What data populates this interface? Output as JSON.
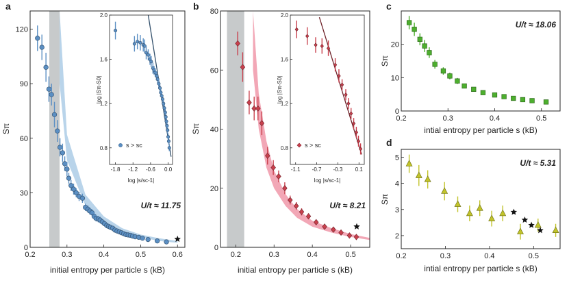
{
  "chart_data": [
    {
      "panel": "a",
      "type": "scatter",
      "xlabel": "initial entropy per particle s (kB)",
      "ylabel": "Sπ",
      "xlim": [
        0.2,
        0.62
      ],
      "ylim": [
        0,
        130
      ],
      "xticks": [
        0.2,
        0.3,
        0.4,
        0.5,
        0.6
      ],
      "xtick_labels": [
        "0.2",
        "0.3",
        "0.4",
        "0.5",
        "0.6"
      ],
      "yticks": [
        0,
        30,
        60,
        90,
        120
      ],
      "ytick_labels": [
        "0",
        "30",
        "60",
        "90",
        "120"
      ],
      "annotation": "U/t ≈ 11.75",
      "color": "#5b8fc3",
      "band_color": "#b9d4ea",
      "marker": "circle",
      "shaded_x": [
        0.252,
        0.28
      ],
      "band": {
        "x": [
          0.28,
          0.3,
          0.35,
          0.4,
          0.45,
          0.5,
          0.55,
          0.6
        ],
        "y_low": [
          90,
          48,
          23,
          13,
          8,
          5.5,
          3.5,
          2.5
        ],
        "y_high": [
          130,
          62,
          29,
          17,
          10.5,
          7,
          5,
          3.5
        ]
      },
      "points": {
        "x": [
          0.22,
          0.232,
          0.243,
          0.251,
          0.258,
          0.266,
          0.274,
          0.281,
          0.288,
          0.294,
          0.3,
          0.305,
          0.311,
          0.318,
          0.325,
          0.333,
          0.342,
          0.35,
          0.357,
          0.362,
          0.368,
          0.374,
          0.379,
          0.385,
          0.39,
          0.396,
          0.402,
          0.408,
          0.413,
          0.418,
          0.424,
          0.43,
          0.436,
          0.442,
          0.448,
          0.454,
          0.46,
          0.466,
          0.472,
          0.478,
          0.485,
          0.495,
          0.505,
          0.52,
          0.545,
          0.57
        ],
        "y": [
          115,
          110,
          99,
          87,
          84,
          73,
          64,
          55,
          52,
          46,
          43,
          38,
          34,
          32,
          30,
          28,
          27,
          22,
          21,
          20,
          19,
          17,
          16,
          15.5,
          15,
          14,
          13,
          12,
          11.5,
          11,
          10.5,
          9.5,
          9,
          8.5,
          8,
          7.5,
          7,
          6.8,
          6.6,
          6.2,
          5.8,
          5.5,
          5,
          4.3,
          3.5,
          3
        ],
        "err": [
          7,
          7,
          8,
          7,
          6,
          7,
          6,
          5,
          5,
          4,
          4,
          3,
          3,
          3,
          2.5,
          2.5,
          2.5,
          2,
          2,
          2,
          2,
          2,
          1.8,
          1.8,
          1.8,
          1.6,
          1.5,
          1.5,
          1.4,
          1.3,
          1.2,
          1.2,
          1.1,
          1,
          1,
          1,
          1,
          0.9,
          0.9,
          0.8,
          0.8,
          0.8,
          0.8,
          0.7,
          0.7,
          0.6
        ]
      },
      "star": {
        "x": 0.6,
        "y": 4.5
      },
      "inset": {
        "xlabel": "log |s/sc-1|",
        "ylabel": "log |Sπ-S0|",
        "xlim": [
          -2.0,
          0.15
        ],
        "ylim": [
          0.65,
          2.0
        ],
        "xticks": [
          -1.8,
          -1.2,
          -0.6,
          0.0
        ],
        "xtick_labels": [
          "-1.8",
          "-1.2",
          "-0.6",
          "0.0"
        ],
        "yticks": [
          0.8,
          1.2,
          1.6,
          2.0
        ],
        "ytick_labels": [
          "0.8",
          "1.2",
          "1.6",
          "2.0"
        ],
        "legend": "s > sc",
        "fit_line": {
          "x": [
            -0.68,
            0.1
          ],
          "y": [
            2.0,
            0.72
          ]
        },
        "points": {
          "x": [
            -1.8,
            -1.15,
            -1.05,
            -0.95,
            -0.85,
            -0.8,
            -0.75,
            -0.68,
            -0.62,
            -0.58,
            -0.52,
            -0.48,
            -0.44,
            -0.4,
            -0.36,
            -0.32,
            -0.28,
            -0.25,
            -0.22,
            -0.19,
            -0.16,
            -0.13,
            -0.1,
            -0.08,
            -0.06,
            -0.04,
            -0.02,
            0.0,
            0.02,
            0.04
          ],
          "y": [
            1.86,
            1.74,
            1.76,
            1.75,
            1.73,
            1.72,
            1.66,
            1.64,
            1.6,
            1.58,
            1.52,
            1.5,
            1.48,
            1.45,
            1.42,
            1.38,
            1.34,
            1.3,
            1.27,
            1.24,
            1.2,
            1.16,
            1.12,
            1.08,
            1.04,
            1.0,
            0.96,
            0.9,
            0.86,
            0.8
          ],
          "err": [
            0.08,
            0.07,
            0.07,
            0.07,
            0.06,
            0.06,
            0.06,
            0.05,
            0.05,
            0.05,
            0.05,
            0.04,
            0.04,
            0.04,
            0.04,
            0.04,
            0.03,
            0.03,
            0.03,
            0.03,
            0.03,
            0.03,
            0.03,
            0.03,
            0.03,
            0.03,
            0.03,
            0.03,
            0.03,
            0.03
          ]
        }
      }
    },
    {
      "panel": "b",
      "type": "scatter",
      "xlabel": "initial entropy per particle s (kB)",
      "ylabel": "Sπ",
      "xlim": [
        0.16,
        0.55
      ],
      "ylim": [
        0,
        80
      ],
      "xticks": [
        0.2,
        0.3,
        0.4,
        0.5
      ],
      "xtick_labels": [
        "0.2",
        "0.3",
        "0.4",
        "0.5"
      ],
      "yticks": [
        0,
        20,
        40,
        60,
        80
      ],
      "ytick_labels": [
        "0",
        "20",
        "40",
        "60",
        "80"
      ],
      "annotation": "U/t ≈ 8.21",
      "color": "#c9404d",
      "band_color": "#f2a7b6",
      "marker": "diamond",
      "shaded_x": [
        0.177,
        0.222
      ],
      "band": {
        "x": [
          0.245,
          0.26,
          0.28,
          0.3,
          0.33,
          0.36,
          0.4,
          0.45,
          0.5,
          0.55
        ],
        "y_low": [
          60,
          40,
          27,
          20,
          14,
          10,
          7,
          5,
          3.5,
          2.5
        ],
        "y_high": [
          80,
          52,
          36,
          26,
          18,
          13,
          9,
          6.5,
          4.5,
          3.2
        ]
      },
      "points": {
        "x": [
          0.205,
          0.218,
          0.235,
          0.248,
          0.258,
          0.268,
          0.283,
          0.298,
          0.312,
          0.328,
          0.342,
          0.358,
          0.372,
          0.39,
          0.41,
          0.432,
          0.455,
          0.475,
          0.497,
          0.515
        ],
        "y": [
          69,
          61,
          49,
          47,
          47,
          42,
          31,
          27,
          24,
          20,
          16,
          14,
          12,
          10.5,
          8.5,
          7,
          6,
          5,
          4,
          3.5
        ],
        "err": [
          4,
          5,
          4,
          4,
          4,
          4,
          3,
          2.5,
          2,
          2,
          1.5,
          1.3,
          1.2,
          1,
          0.9,
          0.8,
          0.7,
          0.6,
          0.5,
          0.5
        ]
      },
      "star": {
        "x": 0.516,
        "y": 7
      },
      "inset": {
        "xlabel": "log |s/sc-1|",
        "ylabel": "log |Sπ-S0|",
        "xlim": [
          -1.2,
          0.2
        ],
        "ylim": [
          0.65,
          2.0
        ],
        "xticks": [
          -1.1,
          -0.7,
          -0.3,
          0.1
        ],
        "xtick_labels": [
          "-1.1",
          "-0.7",
          "-0.3",
          "0.1"
        ],
        "yticks": [
          0.8,
          1.2,
          1.6,
          2.0
        ],
        "ytick_labels": [
          "0.8",
          "1.2",
          "1.6",
          "2.0"
        ],
        "legend": "s > sc",
        "fit_line": {
          "x": [
            -0.65,
            0.15
          ],
          "y": [
            1.98,
            0.74
          ]
        },
        "points": {
          "x": [
            -1.08,
            -0.88,
            -0.72,
            -0.6,
            -0.48,
            -0.35,
            -0.28,
            -0.22,
            -0.15,
            -0.1,
            -0.05,
            0.0,
            0.05,
            0.09,
            0.13
          ],
          "y": [
            1.87,
            1.81,
            1.73,
            1.72,
            1.7,
            1.55,
            1.45,
            1.37,
            1.28,
            1.2,
            1.11,
            1.02,
            0.94,
            0.86,
            0.79
          ],
          "err": [
            0.08,
            0.08,
            0.07,
            0.07,
            0.07,
            0.06,
            0.06,
            0.05,
            0.05,
            0.05,
            0.05,
            0.05,
            0.05,
            0.05,
            0.05
          ]
        }
      }
    },
    {
      "panel": "c",
      "type": "scatter",
      "xlabel": "intial entropy per particle s (kB)",
      "ylabel": "Sπ",
      "xlim": [
        0.2,
        0.54
      ],
      "ylim": [
        0,
        30
      ],
      "xticks": [
        0.2,
        0.3,
        0.4,
        0.5
      ],
      "xtick_labels": [
        "0.2",
        "0.3",
        "0.4",
        "0.5"
      ],
      "yticks": [
        0,
        10,
        20
      ],
      "ytick_labels": [
        "0",
        "10",
        "20"
      ],
      "annotation": "U/t ≈ 18.06",
      "color": "#4daf2e",
      "marker": "square",
      "points": {
        "x": [
          0.217,
          0.228,
          0.24,
          0.25,
          0.26,
          0.272,
          0.29,
          0.304,
          0.32,
          0.335,
          0.355,
          0.375,
          0.4,
          0.42,
          0.44,
          0.46,
          0.48,
          0.51
        ],
        "y": [
          26.5,
          24.5,
          21.5,
          19.5,
          17.5,
          14,
          12,
          10.5,
          9,
          7.5,
          6.5,
          5.5,
          4.8,
          4.3,
          3.8,
          3.4,
          3.1,
          2.7
        ],
        "err": [
          2,
          2,
          1.8,
          1.8,
          1.6,
          1.3,
          1.1,
          1,
          0.9,
          0.7,
          0.6,
          0.5,
          0.5,
          0.4,
          0.4,
          0.3,
          0.3,
          0.3
        ]
      }
    },
    {
      "panel": "d",
      "type": "scatter",
      "xlabel": "intial entropy per particle s (kB)",
      "ylabel": "Sπ",
      "xlim": [
        0.2,
        0.56
      ],
      "ylim": [
        1.5,
        5.3
      ],
      "xticks": [
        0.2,
        0.3,
        0.4,
        0.5
      ],
      "xtick_labels": [
        "0.2",
        "0.3",
        "0.4",
        "0.5"
      ],
      "yticks": [
        2,
        3,
        4,
        5
      ],
      "ytick_labels": [
        "2",
        "3",
        "4",
        "5"
      ],
      "annotation": "U/t ≈ 5.31",
      "color": "#c2c42a",
      "marker": "triangle",
      "points": {
        "x": [
          0.218,
          0.24,
          0.26,
          0.298,
          0.328,
          0.355,
          0.378,
          0.405,
          0.43,
          0.47,
          0.51,
          0.55
        ],
        "y": [
          4.75,
          4.3,
          4.15,
          3.7,
          3.2,
          2.85,
          3.05,
          2.65,
          2.85,
          2.15,
          2.4,
          2.2
        ],
        "err": [
          0.35,
          0.4,
          0.35,
          0.35,
          0.3,
          0.3,
          0.3,
          0.3,
          0.3,
          0.3,
          0.25,
          0.25
        ]
      },
      "stars": {
        "x": [
          0.455,
          0.48,
          0.495,
          0.515
        ],
        "y": [
          2.9,
          2.6,
          2.4,
          2.2
        ]
      }
    }
  ]
}
